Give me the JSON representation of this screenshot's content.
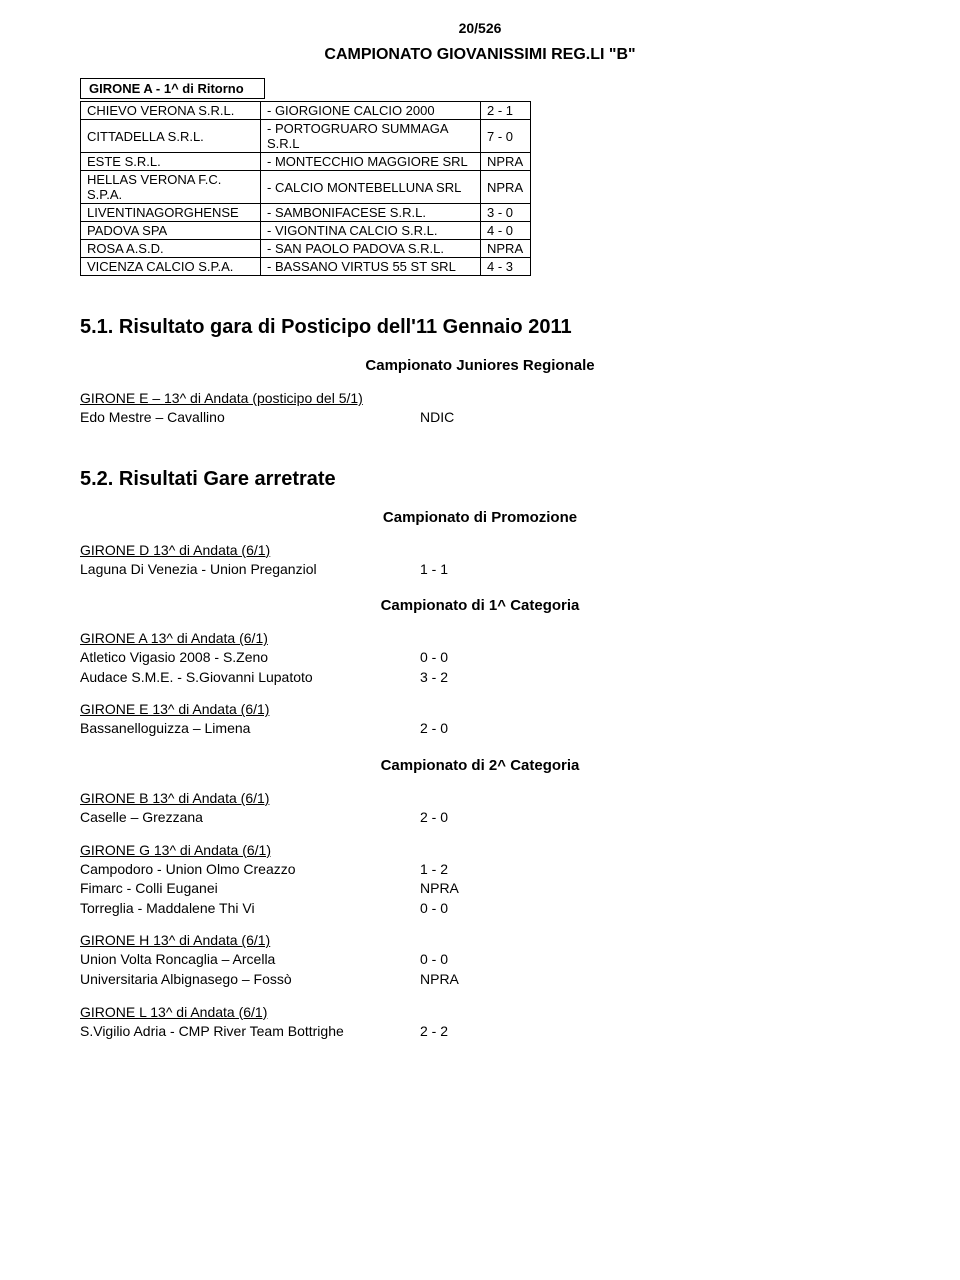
{
  "page_number": "20/526",
  "main_title": "CAMPIONATO GIOVANISSIMI REG.LI \"B\"",
  "girone_box": "GIRONE A - 1^ di Ritorno",
  "table_rows": [
    {
      "home": "CHIEVO VERONA S.R.L.",
      "away": "- GIORGIONE CALCIO 2000",
      "score": "2 - 1"
    },
    {
      "home": "CITTADELLA S.R.L.",
      "away": "- PORTOGRUARO SUMMAGA S.R.L",
      "score": "7 - 0"
    },
    {
      "home": "ESTE S.R.L.",
      "away": "- MONTECCHIO MAGGIORE SRL",
      "score": "NPRA"
    },
    {
      "home": "HELLAS VERONA F.C. S.P.A.",
      "away": "- CALCIO MONTEBELLUNA SRL",
      "score": "NPRA"
    },
    {
      "home": "LIVENTINAGORGHENSE",
      "away": "- SAMBONIFACESE S.R.L.",
      "score": "3 - 0"
    },
    {
      "home": "PADOVA SPA",
      "away": "- VIGONTINA CALCIO S.R.L.",
      "score": "4 - 0"
    },
    {
      "home": "ROSA A.S.D.",
      "away": "- SAN PAOLO PADOVA S.R.L.",
      "score": "NPRA"
    },
    {
      "home": "VICENZA CALCIO S.P.A.",
      "away": "- BASSANO VIRTUS 55 ST SRL",
      "score": "4 - 3"
    }
  ],
  "section51": {
    "heading": "5.1.  Risultato gara di Posticipo dell'11 Gennaio 2011",
    "championship": "Campionato Juniores Regionale",
    "groups": [
      {
        "line": "GIRONE   E – 13^ di Andata (posticipo del 5/1)",
        "matches": [
          {
            "teams": "Edo Mestre – Cavallino",
            "score": "NDIC"
          }
        ]
      }
    ]
  },
  "section52": {
    "heading": "5.2.  Risultati Gare arretrate",
    "blocks": [
      {
        "championship": "Campionato di Promozione",
        "groups": [
          {
            "line": "GIRONE   D 13^ di Andata (6/1)",
            "matches": [
              {
                "teams": "Laguna Di Venezia - Union Preganziol",
                "score": "1 - 1"
              }
            ]
          }
        ]
      },
      {
        "championship": "Campionato di 1^ Categoria",
        "groups": [
          {
            "line": "GIRONE   A 13^ di Andata (6/1)",
            "matches": [
              {
                "teams": "Atletico Vigasio 2008 - S.Zeno",
                "score": "0 - 0"
              },
              {
                "teams": "Audace S.M.E. - S.Giovanni Lupatoto",
                "score": "3 - 2"
              }
            ]
          },
          {
            "line": "GIRONE   E 13^ di Andata (6/1)",
            "matches": [
              {
                "teams": "Bassanelloguizza – Limena",
                "score": "2 - 0"
              }
            ]
          }
        ]
      },
      {
        "championship": "Campionato di 2^ Categoria",
        "groups": [
          {
            "line": "GIRONE   B 13^ di Andata (6/1)",
            "matches": [
              {
                "teams": "Caselle – Grezzana",
                "score": "2 - 0"
              }
            ]
          },
          {
            "line": "GIRONE   G 13^ di Andata (6/1)",
            "matches": [
              {
                "teams": "Campodoro - Union Olmo Creazzo",
                "score": "1 - 2"
              },
              {
                "teams": "Fimarc - Colli Euganei",
                "score": "NPRA"
              },
              {
                "teams": "Torreglia - Maddalene Thi Vi",
                "score": "0 - 0"
              }
            ]
          },
          {
            "line": "GIRONE   H 13^ di Andata (6/1)",
            "matches": [
              {
                "teams": "Union Volta Roncaglia – Arcella",
                "score": "0 - 0"
              },
              {
                "teams": "Universitaria Albignasego – Fossò",
                "score": "NPRA"
              }
            ]
          },
          {
            "line": "GIRONE   L 13^ di Andata (6/1)",
            "matches": [
              {
                "teams": "S.Vigilio Adria - CMP River Team Bottrighe",
                "score": "2 - 2"
              }
            ]
          }
        ]
      }
    ]
  }
}
